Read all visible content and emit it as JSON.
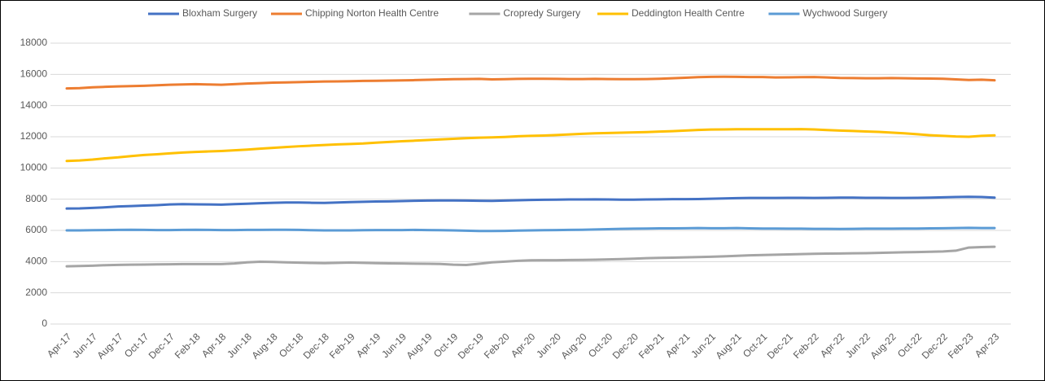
{
  "chart_data": {
    "type": "line",
    "categories": [
      "Apr-17",
      null,
      "Jun-17",
      null,
      "Aug-17",
      null,
      "Oct-17",
      null,
      "Dec-17",
      null,
      "Feb-18",
      null,
      "Apr-18",
      null,
      "Jun-18",
      null,
      "Aug-18",
      null,
      "Oct-18",
      null,
      "Dec-18",
      null,
      "Feb-19",
      null,
      "Apr-19",
      null,
      "Jun-19",
      null,
      "Aug-19",
      null,
      "Oct-19",
      null,
      "Dec-19",
      null,
      "Feb-20",
      null,
      "Apr-20",
      null,
      "Jun-20",
      null,
      "Aug-20",
      null,
      "Oct-20",
      null,
      "Dec-20",
      null,
      "Feb-21",
      null,
      "Apr-21",
      null,
      "Jun-21",
      null,
      "Aug-21",
      null,
      "Oct-21",
      null,
      "Dec-21",
      null,
      "Feb-22",
      null,
      "Apr-22",
      null,
      "Jun-22",
      null,
      "Aug-22",
      null,
      "Oct-22",
      null,
      "Dec-22",
      null,
      "Feb-23",
      null,
      "Apr-23"
    ],
    "series": [
      {
        "name": "Bloxham Surgery",
        "color": "#4472c4",
        "values": [
          7400,
          7410,
          7440,
          7480,
          7530,
          7560,
          7590,
          7620,
          7660,
          7680,
          7670,
          7660,
          7650,
          7680,
          7710,
          7740,
          7770,
          7790,
          7790,
          7770,
          7760,
          7790,
          7810,
          7830,
          7850,
          7860,
          7880,
          7900,
          7910,
          7920,
          7920,
          7910,
          7900,
          7890,
          7910,
          7930,
          7950,
          7960,
          7970,
          7980,
          7980,
          7990,
          7980,
          7970,
          7970,
          7980,
          7990,
          8000,
          8000,
          8010,
          8030,
          8050,
          8070,
          8080,
          8080,
          8080,
          8090,
          8090,
          8080,
          8090,
          8100,
          8100,
          8090,
          8090,
          8080,
          8080,
          8090,
          8100,
          8120,
          8140,
          8150,
          8140,
          8100
        ]
      },
      {
        "name": "Chipping Norton Health Centre",
        "color": "#ed7d31",
        "values": [
          15100,
          15120,
          15170,
          15200,
          15230,
          15250,
          15270,
          15300,
          15330,
          15350,
          15370,
          15350,
          15330,
          15370,
          15410,
          15440,
          15470,
          15480,
          15500,
          15520,
          15540,
          15550,
          15560,
          15580,
          15590,
          15600,
          15610,
          15630,
          15650,
          15670,
          15690,
          15700,
          15710,
          15680,
          15690,
          15710,
          15720,
          15720,
          15710,
          15700,
          15700,
          15710,
          15700,
          15690,
          15690,
          15700,
          15720,
          15750,
          15780,
          15820,
          15840,
          15850,
          15840,
          15830,
          15830,
          15800,
          15810,
          15820,
          15830,
          15800,
          15770,
          15760,
          15750,
          15750,
          15760,
          15750,
          15740,
          15730,
          15720,
          15680,
          15640,
          15660,
          15620
        ]
      },
      {
        "name": "Cropredy Surgery",
        "color": "#a5a5a5",
        "values": [
          3700,
          3720,
          3740,
          3770,
          3790,
          3800,
          3810,
          3820,
          3830,
          3840,
          3840,
          3840,
          3840,
          3880,
          3950,
          3990,
          3980,
          3950,
          3930,
          3910,
          3900,
          3920,
          3940,
          3920,
          3900,
          3890,
          3880,
          3870,
          3860,
          3850,
          3800,
          3780,
          3860,
          3950,
          4000,
          4050,
          4080,
          4090,
          4090,
          4100,
          4110,
          4120,
          4140,
          4160,
          4190,
          4220,
          4240,
          4250,
          4270,
          4290,
          4310,
          4340,
          4370,
          4400,
          4420,
          4440,
          4460,
          4480,
          4500,
          4510,
          4520,
          4530,
          4540,
          4560,
          4580,
          4600,
          4610,
          4630,
          4650,
          4700,
          4900,
          4930,
          4950
        ]
      },
      {
        "name": "Deddington Health Centre",
        "color": "#ffc000",
        "values": [
          10450,
          10480,
          10540,
          10620,
          10680,
          10760,
          10830,
          10880,
          10940,
          10990,
          11030,
          11060,
          11090,
          11130,
          11180,
          11240,
          11290,
          11340,
          11390,
          11430,
          11470,
          11510,
          11540,
          11570,
          11620,
          11670,
          11710,
          11750,
          11790,
          11830,
          11870,
          11910,
          11940,
          11960,
          11990,
          12030,
          12060,
          12080,
          12110,
          12150,
          12190,
          12220,
          12240,
          12260,
          12280,
          12300,
          12330,
          12360,
          12400,
          12440,
          12460,
          12470,
          12480,
          12480,
          12480,
          12480,
          12480,
          12490,
          12470,
          12430,
          12400,
          12370,
          12340,
          12310,
          12270,
          12220,
          12160,
          12100,
          12060,
          12020,
          12000,
          12060,
          12090
        ]
      },
      {
        "name": "Wychwood Surgery",
        "color": "#5b9bd5",
        "values": [
          6000,
          6000,
          6010,
          6020,
          6030,
          6040,
          6030,
          6020,
          6020,
          6030,
          6040,
          6030,
          6020,
          6020,
          6030,
          6030,
          6040,
          6040,
          6030,
          6010,
          6000,
          6000,
          6000,
          6010,
          6020,
          6020,
          6020,
          6030,
          6020,
          6010,
          6000,
          5980,
          5960,
          5960,
          5970,
          5990,
          6000,
          6010,
          6020,
          6030,
          6040,
          6060,
          6080,
          6100,
          6110,
          6120,
          6130,
          6130,
          6140,
          6150,
          6140,
          6140,
          6150,
          6130,
          6120,
          6120,
          6110,
          6110,
          6100,
          6100,
          6090,
          6100,
          6110,
          6110,
          6110,
          6120,
          6120,
          6130,
          6140,
          6150,
          6160,
          6150,
          6150
        ]
      }
    ],
    "ylim": [
      0,
      18000
    ],
    "yticks": [
      0,
      2000,
      4000,
      6000,
      8000,
      10000,
      12000,
      14000,
      16000,
      18000
    ],
    "grid": true,
    "legend": "top"
  }
}
